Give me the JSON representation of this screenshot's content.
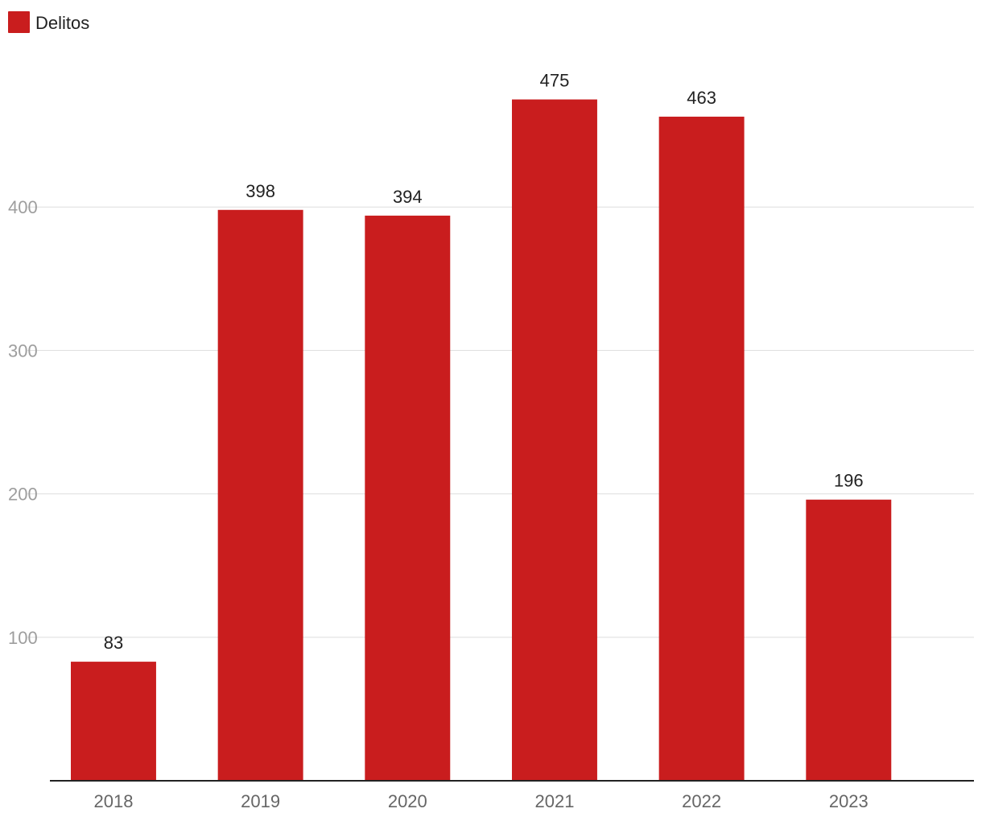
{
  "chart_data": {
    "type": "bar",
    "title": "",
    "xlabel": "",
    "ylabel": "",
    "legend": {
      "position": "top-left"
    },
    "categories": [
      "2018",
      "2019",
      "2020",
      "2021",
      "2022",
      "2023"
    ],
    "series": [
      {
        "name": "Delitos",
        "color": "#c91d1e",
        "values": [
          83,
          398,
          394,
          475,
          463,
          196
        ]
      }
    ],
    "y_ticks": [
      100,
      200,
      300,
      400
    ],
    "ylim": [
      0,
      500
    ],
    "grid": true,
    "data_labels": true
  }
}
